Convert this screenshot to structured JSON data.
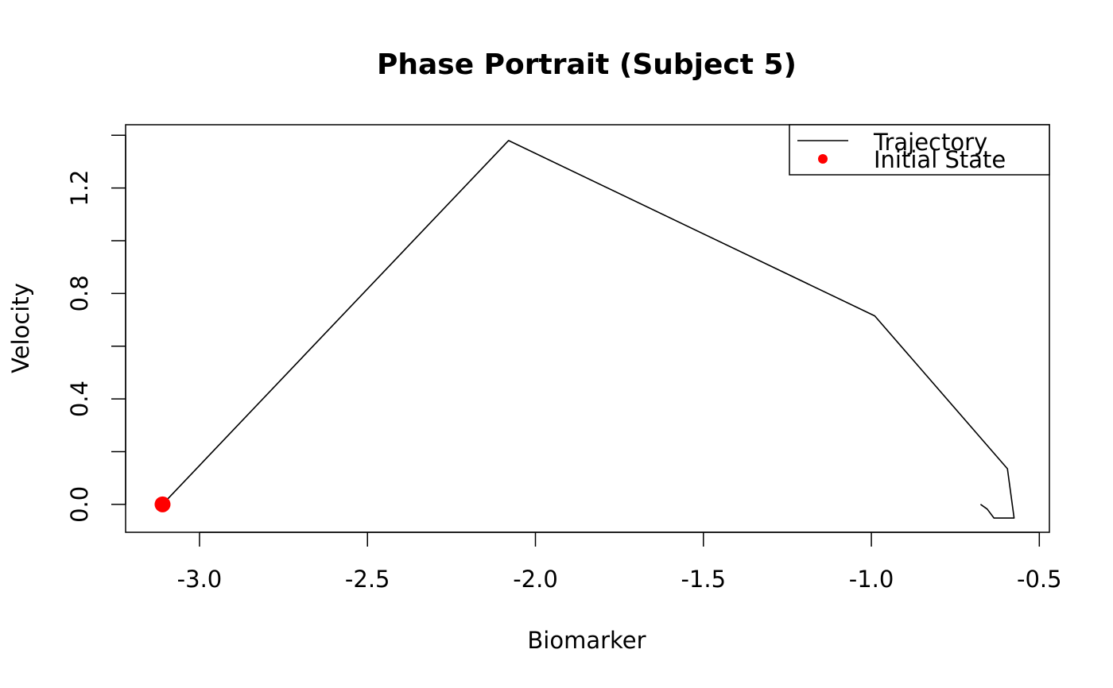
{
  "chart_data": {
    "type": "line",
    "title": "Phase Portrait (Subject 5)",
    "xlabel": "Biomarker",
    "ylabel": "Velocity",
    "xlim": [
      -3.22,
      -0.47
    ],
    "ylim": [
      -0.106,
      1.44
    ],
    "xticks": [
      -3.0,
      -2.5,
      -2.0,
      -1.5,
      -1.0,
      -0.5
    ],
    "xtick_labels": [
      "-3.0",
      "-2.5",
      "-2.0",
      "-1.5",
      "-1.0",
      "-0.5"
    ],
    "yticks": [
      0.0,
      0.2,
      0.4,
      0.6,
      0.8,
      1.0,
      1.2,
      1.4
    ],
    "ytick_labels": [
      "0.0",
      "",
      "0.4",
      "",
      "0.8",
      "",
      "1.2",
      ""
    ],
    "grid": false,
    "legend_position": "top-right",
    "series": [
      {
        "name": "Trajectory",
        "color": "#000000",
        "x": [
          -3.11,
          -2.08,
          -0.99,
          -0.595,
          -0.575,
          -0.635,
          -0.655,
          -0.675
        ],
        "y": [
          0.0,
          1.38,
          0.715,
          0.135,
          -0.052,
          -0.052,
          -0.018,
          0.0
        ]
      },
      {
        "name": "Initial State",
        "color": "#ff0000",
        "marker": "point",
        "x": [
          -3.11
        ],
        "y": [
          0.0
        ]
      }
    ]
  }
}
